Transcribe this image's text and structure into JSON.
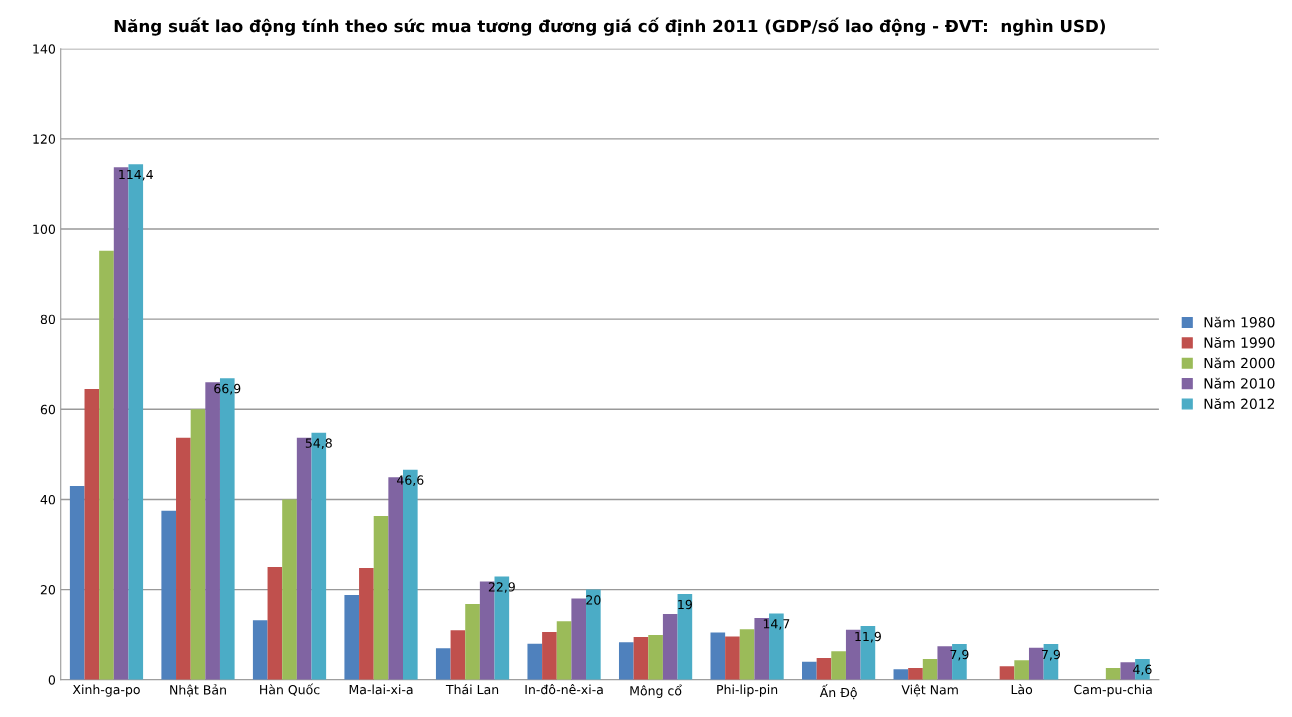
{
  "chart_data": {
    "type": "bar",
    "title": "Năng suất lao động tính theo sức mua tương đương giá cố định 2011 (GDP/số lao động - ĐVT:  nghìn USD)",
    "categories": [
      "Xinh-ga-po",
      "Nhật Bản",
      "Hàn Quốc",
      "Ma-lai-xi-a",
      "Thái Lan",
      "In-đô-nê-xi-a",
      "Mông cổ",
      "Phi-lip-pin",
      "Ấn Độ",
      "Việt Nam",
      "Lào",
      "Cam-pu-chia"
    ],
    "series": [
      {
        "name": "Năm 1980",
        "color": "#4f81bd",
        "values": [
          43,
          37.5,
          13.2,
          18.8,
          7,
          8,
          8.3,
          10.5,
          4,
          2.3,
          null,
          null
        ]
      },
      {
        "name": "Năm 1990",
        "color": "#c0504d",
        "values": [
          64.5,
          53.7,
          25,
          24.8,
          11,
          10.6,
          9.5,
          9.6,
          4.8,
          2.6,
          3,
          null
        ]
      },
      {
        "name": "Năm 2000",
        "color": "#9bbb59",
        "values": [
          95.2,
          60,
          40,
          36.3,
          16.8,
          13,
          9.9,
          11.2,
          6.3,
          4.6,
          4.3,
          2.6
        ]
      },
      {
        "name": "Năm 2010",
        "color": "#8064a2",
        "values": [
          113.7,
          66,
          53.7,
          44.9,
          21.8,
          18,
          14.6,
          13.7,
          11.1,
          7.4,
          7.1,
          3.9
        ]
      },
      {
        "name": "Năm 2012",
        "color": "#4bacc6",
        "values": [
          114.4,
          66.9,
          54.8,
          46.6,
          22.9,
          20,
          19,
          14.7,
          11.9,
          7.9,
          7.9,
          4.6
        ],
        "value_labels": [
          "114,4",
          "66,9",
          "54,8",
          "46,6",
          "22,9",
          "20",
          "19",
          "14,7",
          "11,9",
          "7,9",
          "7,9",
          "4,6"
        ]
      }
    ],
    "ylim": [
      0,
      140
    ],
    "yticks": [
      0,
      20,
      40,
      60,
      80,
      100,
      120,
      140
    ],
    "grid": "y",
    "legend": "right"
  }
}
